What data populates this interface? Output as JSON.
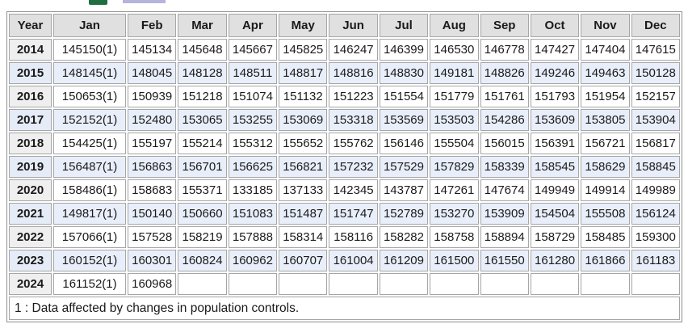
{
  "decorations": {
    "excel_icon_fragment": "cropped spreadsheet download icon",
    "ruler_icon_fragment": "cropped chart/toolbar icon",
    "excel_icon_color": "#1e6e41",
    "ruler_icon_color": "#b4b4dc"
  },
  "colors": {
    "header_background": "#e0e0e0",
    "stripe_blue": "#e9effa",
    "year_cell_gray": "#efefef",
    "cell_border": "#a6a6a6",
    "text": "#1a1a1a"
  },
  "table": {
    "columns": [
      "Year",
      "Jan",
      "Feb",
      "Mar",
      "Apr",
      "May",
      "Jun",
      "Jul",
      "Aug",
      "Sep",
      "Oct",
      "Nov",
      "Dec"
    ],
    "rows": [
      {
        "year": "2014",
        "values": [
          "145150(1)",
          "145134",
          "145648",
          "145667",
          "145825",
          "146247",
          "146399",
          "146530",
          "146778",
          "147427",
          "147404",
          "147615"
        ]
      },
      {
        "year": "2015",
        "values": [
          "148145(1)",
          "148045",
          "148128",
          "148511",
          "148817",
          "148816",
          "148830",
          "149181",
          "148826",
          "149246",
          "149463",
          "150128"
        ]
      },
      {
        "year": "2016",
        "values": [
          "150653(1)",
          "150939",
          "151218",
          "151074",
          "151132",
          "151223",
          "151554",
          "151779",
          "151761",
          "151793",
          "151954",
          "152157"
        ]
      },
      {
        "year": "2017",
        "values": [
          "152152(1)",
          "152480",
          "153065",
          "153255",
          "153069",
          "153318",
          "153569",
          "153503",
          "154286",
          "153609",
          "153805",
          "153904"
        ]
      },
      {
        "year": "2018",
        "values": [
          "154425(1)",
          "155197",
          "155214",
          "155312",
          "155652",
          "155762",
          "156146",
          "155504",
          "156015",
          "156391",
          "156721",
          "156817"
        ]
      },
      {
        "year": "2019",
        "values": [
          "156487(1)",
          "156863",
          "156701",
          "156625",
          "156821",
          "157232",
          "157529",
          "157829",
          "158339",
          "158545",
          "158629",
          "158845"
        ]
      },
      {
        "year": "2020",
        "values": [
          "158486(1)",
          "158683",
          "155371",
          "133185",
          "137133",
          "142345",
          "143787",
          "147261",
          "147674",
          "149949",
          "149914",
          "149989"
        ]
      },
      {
        "year": "2021",
        "values": [
          "149817(1)",
          "150140",
          "150660",
          "151083",
          "151487",
          "151747",
          "152789",
          "153270",
          "153909",
          "154504",
          "155508",
          "156124"
        ]
      },
      {
        "year": "2022",
        "values": [
          "157066(1)",
          "157528",
          "158219",
          "157888",
          "158314",
          "158116",
          "158282",
          "158758",
          "158894",
          "158729",
          "158485",
          "159300"
        ]
      },
      {
        "year": "2023",
        "values": [
          "160152(1)",
          "160301",
          "160824",
          "160962",
          "160707",
          "161004",
          "161209",
          "161500",
          "161550",
          "161280",
          "161866",
          "161183"
        ]
      },
      {
        "year": "2024",
        "values": [
          "161152(1)",
          "160968",
          "",
          "",
          "",
          "",
          "",
          "",
          "",
          "",
          "",
          ""
        ]
      }
    ],
    "footnote": "1 : Data affected by changes in population controls."
  }
}
